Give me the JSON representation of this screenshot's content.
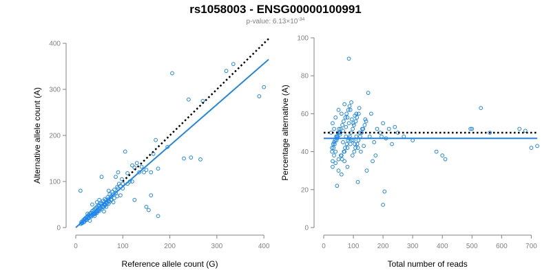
{
  "figure": {
    "title": "rs1058003 - ENSG00000100991",
    "subtitle_prefix": "p-value: 6.13×10",
    "subtitle_exponent": "-34"
  },
  "colors": {
    "points": "#1c86ee",
    "fit_line": "#1c86ee",
    "reference_line": "#000000",
    "axis": "#808080"
  },
  "chart_data": [
    {
      "type": "scatter",
      "xlabel": "Reference allele count (G)",
      "ylabel": "Alternative allele count (A)",
      "xlim": [
        0,
        410
      ],
      "ylim": [
        0,
        400
      ],
      "xticks": [
        0,
        100,
        200,
        300,
        400
      ],
      "yticks": [
        0,
        100,
        200,
        300,
        400
      ],
      "grid": false,
      "points": {
        "x": [
          400,
          390,
          320,
          335,
          205,
          240,
          230,
          245,
          265,
          270,
          170,
          175,
          195,
          165,
          160,
          155,
          140,
          150,
          145,
          135,
          120,
          125,
          105,
          110,
          115,
          100,
          95,
          90,
          85,
          80,
          75,
          70,
          65,
          60,
          55,
          50,
          45,
          40,
          35,
          30,
          25,
          20,
          15,
          12,
          10,
          14,
          18,
          22,
          28,
          32,
          38,
          42,
          48,
          52,
          58,
          62,
          68,
          72,
          78,
          82,
          88,
          92,
          98,
          55,
          60,
          45,
          40,
          35,
          50,
          65,
          70,
          30,
          25,
          20,
          42,
          38,
          33,
          47,
          53,
          58,
          63,
          27,
          23,
          17,
          13,
          11,
          80,
          75,
          95,
          60,
          70,
          50,
          45,
          100,
          110,
          130,
          85,
          90,
          160,
          175,
          150,
          120,
          125,
          55,
          40,
          30,
          25,
          35,
          45,
          60,
          50,
          65,
          70,
          40,
          28,
          22,
          18,
          14,
          33,
          37,
          43,
          48,
          52,
          57,
          62,
          66,
          72,
          76,
          82,
          88
        ],
        "y": [
          305,
          285,
          340,
          355,
          335,
          278,
          150,
          152,
          148,
          275,
          190,
          25,
          175,
          160,
          70,
          38,
          132,
          125,
          120,
          120,
          135,
          130,
          165,
          118,
          100,
          95,
          90,
          85,
          75,
          72,
          68,
          62,
          60,
          55,
          52,
          48,
          45,
          40,
          36,
          30,
          25,
          20,
          15,
          12,
          80,
          10,
          18,
          22,
          28,
          32,
          38,
          42,
          48,
          52,
          58,
          62,
          66,
          72,
          78,
          82,
          88,
          95,
          105,
          40,
          45,
          35,
          30,
          28,
          40,
          55,
          52,
          25,
          22,
          18,
          30,
          28,
          24,
          36,
          42,
          46,
          50,
          20,
          18,
          14,
          10,
          8,
          55,
          60,
          70,
          50,
          58,
          36,
          32,
          85,
          95,
          140,
          110,
          120,
          120,
          128,
          45,
          100,
          60,
          110,
          25,
          15,
          30,
          50,
          55,
          35,
          60,
          45,
          80,
          40,
          22,
          16,
          12,
          10,
          26,
          30,
          34,
          38,
          42,
          45,
          48,
          52,
          56,
          60,
          64,
          68
        ]
      },
      "lines": [
        {
          "style": "dotted",
          "color": "#000000",
          "from": [
            100,
            100
          ],
          "to": [
            410,
            410
          ]
        },
        {
          "style": "solid",
          "color": "#1c86ee",
          "from": [
            0,
            0
          ],
          "to": [
            410,
            365
          ]
        }
      ]
    },
    {
      "type": "scatter",
      "xlabel": "Total number of reads",
      "ylabel": "Percentage alternative (A)",
      "xlim": [
        0,
        720
      ],
      "ylim": [
        0,
        100
      ],
      "xticks": [
        0,
        100,
        200,
        300,
        400,
        500,
        600,
        700
      ],
      "yticks": [
        0,
        20,
        40,
        60,
        80,
        100
      ],
      "grid": false,
      "points": {
        "x": [
          85,
          150,
          530,
          700,
          720,
          660,
          680,
          495,
          560,
          500,
          380,
          400,
          410,
          300,
          270,
          250,
          240,
          230,
          220,
          210,
          200,
          190,
          180,
          170,
          160,
          155,
          140,
          130,
          120,
          110,
          100,
          90,
          80,
          70,
          60,
          50,
          40,
          30,
          25,
          35,
          45,
          55,
          65,
          75,
          85,
          95,
          105,
          115,
          125,
          135,
          145,
          165,
          175,
          195,
          200,
          205,
          115,
          45,
          50,
          60,
          70,
          80,
          40,
          35,
          30,
          28,
          32,
          38,
          42,
          48,
          52,
          58,
          62,
          68,
          72,
          78,
          82,
          88,
          92,
          98,
          102,
          108,
          112,
          118,
          30,
          40,
          50,
          60,
          70,
          80,
          90,
          100,
          110,
          120,
          35,
          45,
          55,
          65,
          75,
          85,
          95,
          105,
          28,
          33,
          37,
          43,
          47,
          53,
          57,
          63,
          67,
          73,
          77,
          83,
          87,
          93,
          97,
          103,
          107,
          113,
          117,
          123,
          128,
          133,
          138,
          143
        ],
        "y": [
          89,
          71,
          63,
          42,
          43,
          52,
          51,
          52,
          50,
          52,
          40,
          38,
          36,
          46,
          48,
          50,
          53,
          44,
          52,
          47,
          55,
          50,
          52,
          45,
          60,
          48,
          57,
          52,
          63,
          60,
          55,
          62,
          58,
          65,
          60,
          62,
          58,
          55,
          50,
          52,
          48,
          50,
          45,
          48,
          47,
          46,
          44,
          42,
          40,
          43,
          30,
          35,
          38,
          48,
          12,
          19,
          24,
          22,
          30,
          28,
          35,
          32,
          40,
          38,
          35,
          42,
          44,
          46,
          48,
          50,
          52,
          38,
          36,
          40,
          42,
          44,
          46,
          48,
          50,
          52,
          54,
          56,
          58,
          60,
          32,
          34,
          36,
          38,
          40,
          42,
          44,
          46,
          48,
          50,
          45,
          47,
          49,
          51,
          53,
          55,
          57,
          59,
          40,
          42,
          44,
          46,
          48,
          50,
          52,
          54,
          56,
          58,
          60,
          62,
          64,
          66,
          38,
          40,
          42,
          44,
          46,
          48,
          50,
          52,
          54,
          56
        ]
      },
      "lines": [
        {
          "style": "dotted",
          "color": "#000000",
          "from": [
            0,
            50
          ],
          "to": [
            720,
            50
          ]
        },
        {
          "style": "solid",
          "color": "#1c86ee",
          "from": [
            0,
            47
          ],
          "to": [
            720,
            47
          ]
        }
      ]
    }
  ]
}
